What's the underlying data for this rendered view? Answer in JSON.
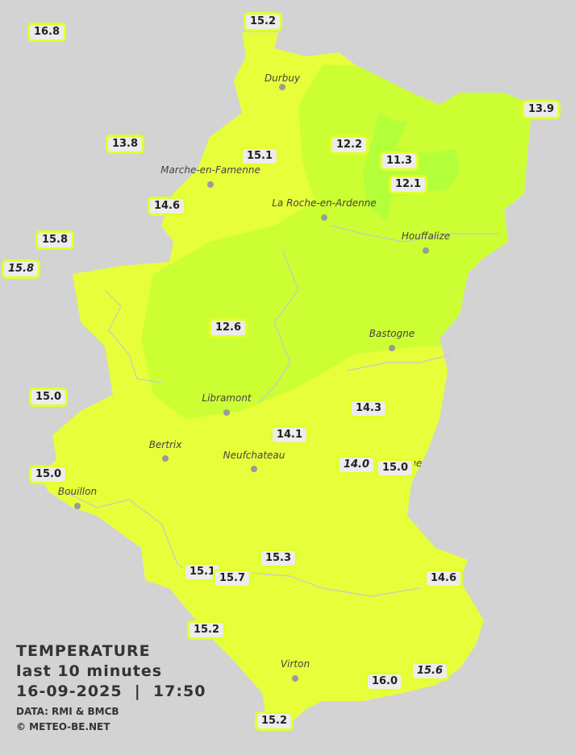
{
  "legend": {
    "title": "TEMPERATURE",
    "subtitle": "last 10 minutes",
    "datetime": "16-09-2025  |  17:50",
    "source": "DATA: RMI & BMCB",
    "copyright": "© METEO-BE.NET"
  },
  "colors": {
    "background": "#d3d3d3",
    "zone_14_16": "#e6ff3a",
    "zone_12_13": "#ccff33",
    "zone_11": "#b0ff3a",
    "label_border": "#e4ff2a"
  },
  "cities": [
    "Durbuy",
    "Marche-en-Famenne",
    "La Roche-en-Ardenne",
    "Houffalize",
    "Bastogne",
    "Libramont",
    "Bertrix",
    "Neufchateau",
    "Bouillon",
    "Virton",
    "nge"
  ],
  "stations": [
    {
      "value": "16.8",
      "italic": false
    },
    {
      "value": "15.2",
      "italic": false
    },
    {
      "value": "13.9",
      "italic": false
    },
    {
      "value": "13.8",
      "italic": false
    },
    {
      "value": "15.1",
      "italic": false
    },
    {
      "value": "12.2",
      "italic": false
    },
    {
      "value": "11.3",
      "italic": false
    },
    {
      "value": "12.1",
      "italic": false
    },
    {
      "value": "14.6",
      "italic": false
    },
    {
      "value": "15.8",
      "italic": false
    },
    {
      "value": "15.8",
      "italic": true
    },
    {
      "value": "12.6",
      "italic": false
    },
    {
      "value": "15.0",
      "italic": false
    },
    {
      "value": "14.3",
      "italic": false
    },
    {
      "value": "14.1",
      "italic": false
    },
    {
      "value": "15.0",
      "italic": false
    },
    {
      "value": "14.0",
      "italic": true
    },
    {
      "value": "15.0",
      "italic": false
    },
    {
      "value": "15.3",
      "italic": false
    },
    {
      "value": "15.1",
      "italic": false
    },
    {
      "value": "15.7",
      "italic": false
    },
    {
      "value": "14.6",
      "italic": false
    },
    {
      "value": "15.2",
      "italic": false
    },
    {
      "value": "16.0",
      "italic": false
    },
    {
      "value": "15.6",
      "italic": true
    },
    {
      "value": "15.2",
      "italic": false
    }
  ]
}
